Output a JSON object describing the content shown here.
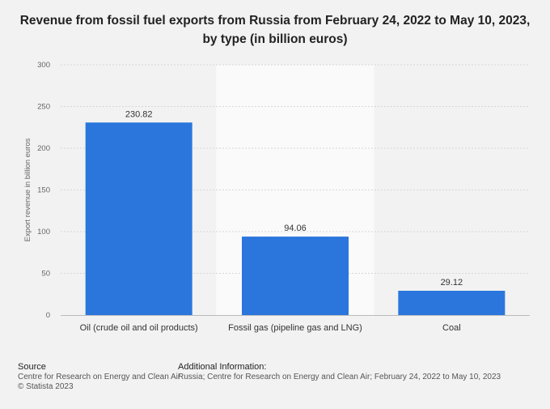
{
  "title_lines": [
    "Revenue from fossil fuel exports from Russia from February 24, 2022 to May 10, 2023,",
    "by type (in billion euros)"
  ],
  "chart_data": {
    "type": "bar",
    "title": "Revenue from fossil fuel exports from Russia from February 24, 2022 to May 10, 2023, by type (in billion euros)",
    "categories": [
      "Oil (crude oil and oil products)",
      "Fossil gas (pipeline gas and LNG)",
      "Coal"
    ],
    "values": [
      230.82,
      94.06,
      29.12
    ],
    "value_labels": [
      "230.82",
      "94.06",
      "29.12"
    ],
    "xlabel": "",
    "ylabel": "Export revenue in billion euros",
    "ylim": [
      0,
      300
    ],
    "yticks": [
      0,
      50,
      100,
      150,
      200,
      250,
      300
    ],
    "grid": true,
    "bar_color": "#2a76dd",
    "highlight_band_color": "#fafafa",
    "gridline_color": "#d6d6d6"
  },
  "footer": {
    "source_heading": "Source",
    "source_lines": [
      "Centre for Research on Energy and Clean Air",
      "© Statista 2023"
    ],
    "info_heading": "Additional Information:",
    "info_lines": [
      "Russia; Centre for Research on Energy and Clean Air; February 24, 2022 to May 10, 2023"
    ]
  }
}
